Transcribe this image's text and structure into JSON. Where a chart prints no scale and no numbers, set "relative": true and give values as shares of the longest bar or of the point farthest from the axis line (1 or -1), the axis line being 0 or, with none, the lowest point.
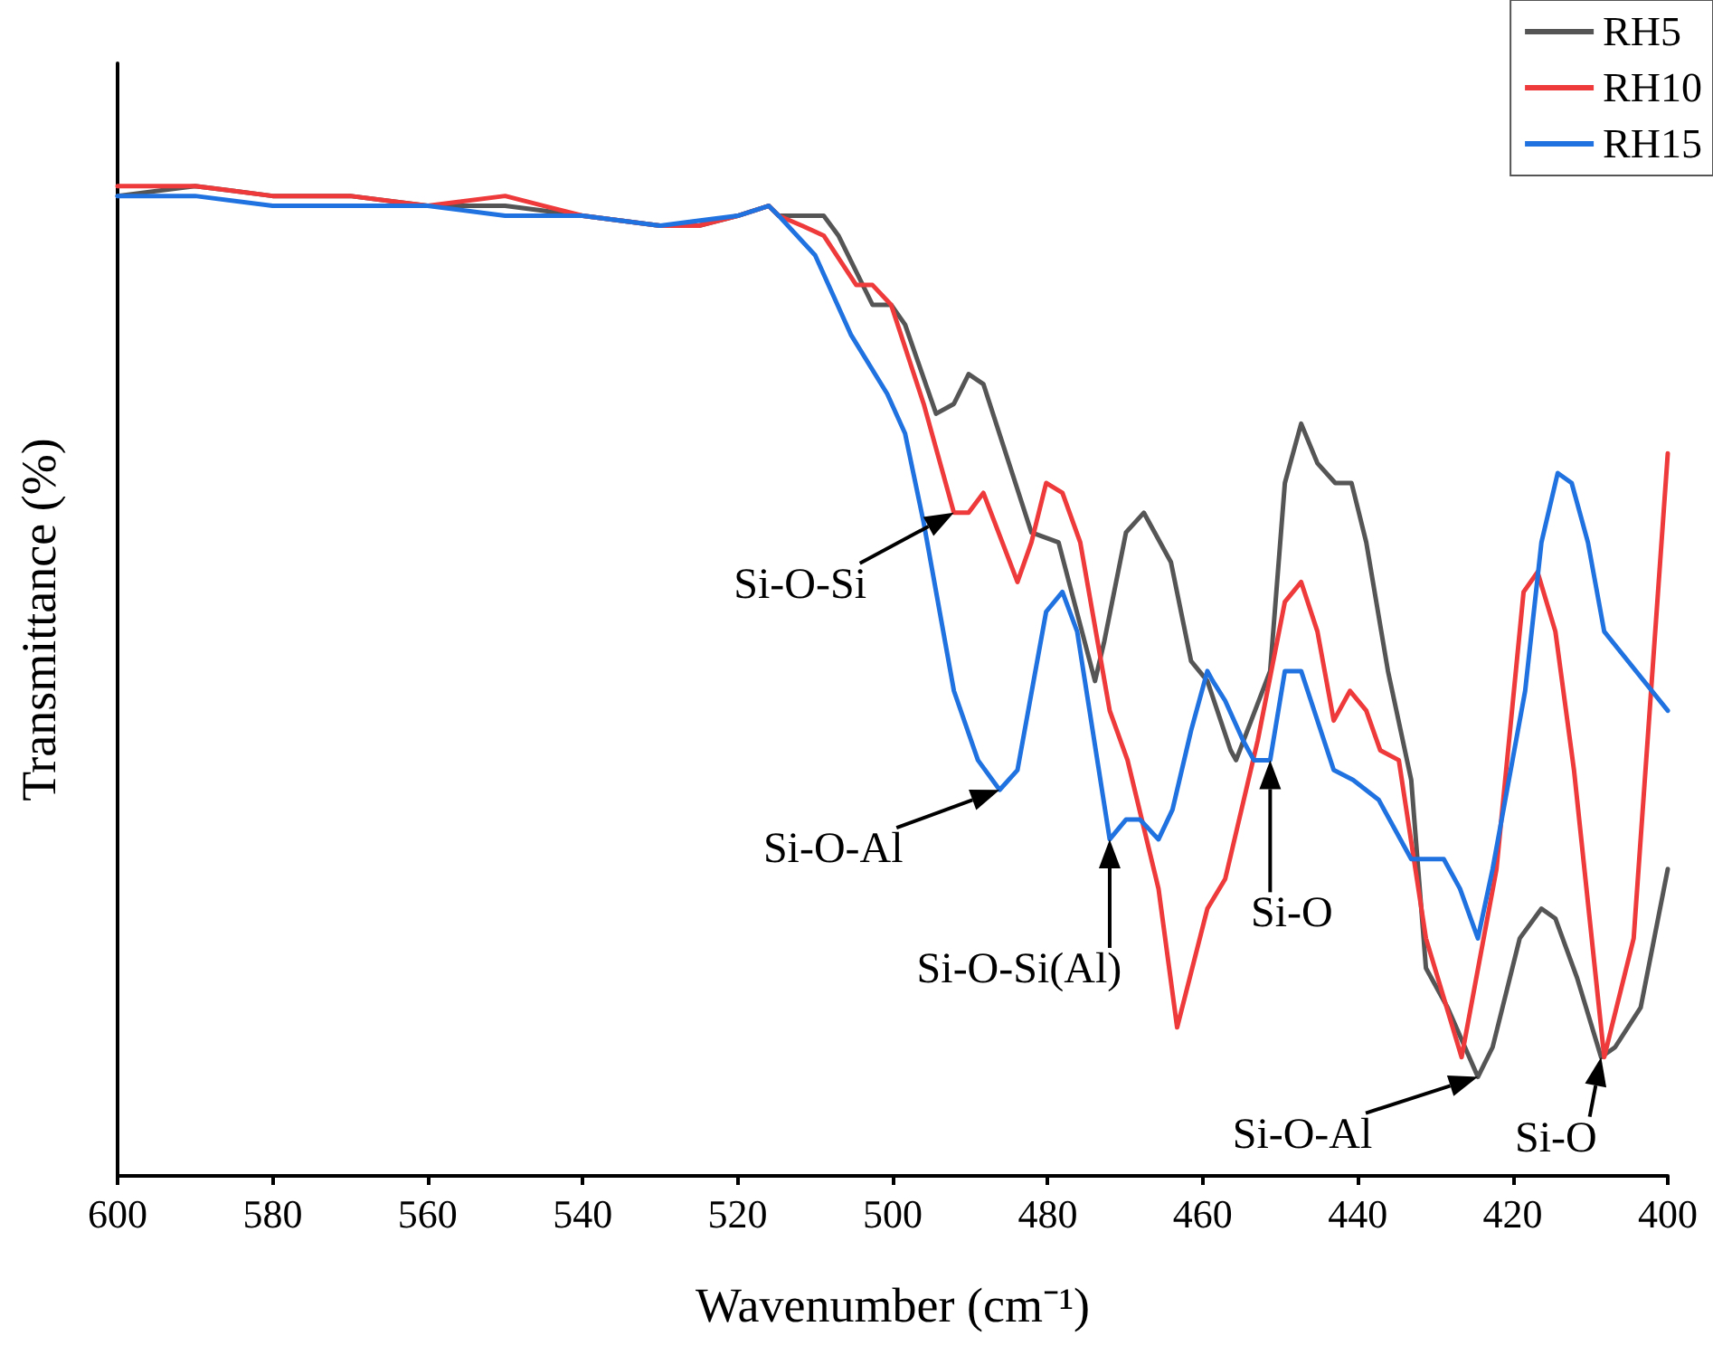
{
  "chart_data": {
    "type": "line",
    "relative": true,
    "xlabel": "Wavenumber (cm⁻¹)",
    "ylabel": "Transmittance (%)",
    "xlim": [
      600,
      400
    ],
    "xticks": [
      600,
      580,
      560,
      540,
      520,
      500,
      480,
      460,
      440,
      420,
      400
    ],
    "grid": false,
    "legend": "top right",
    "tick_labels": "x",
    "series": [
      {
        "name": "RH5",
        "color": "#555555",
        "x": [
          600,
          590,
          580,
          570,
          560,
          550,
          540,
          530,
          525,
          520,
          516,
          514.7,
          508.9,
          507.0,
          502.6,
          500.2,
          498.4,
          494.4,
          492.1,
          490.2,
          488.3,
          482.1,
          478.6,
          473.9,
          472.7,
          469.9,
          467.6,
          464.1,
          461.5,
          459.4,
          456.4,
          455.7,
          451.3,
          449.4,
          447.3,
          445.2,
          442.9,
          440.8,
          438.9,
          436.1,
          433.1,
          431.2,
          428.4,
          424.5,
          422.6,
          419.1,
          416.3,
          414.5,
          411.7,
          408.6,
          406.8,
          403.5,
          400
        ],
        "values": [
          0.99,
          1.0,
          0.99,
          0.99,
          0.98,
          0.98,
          0.97,
          0.96,
          0.96,
          0.97,
          0.98,
          0.97,
          0.97,
          0.95,
          0.88,
          0.88,
          0.86,
          0.77,
          0.78,
          0.81,
          0.8,
          0.65,
          0.64,
          0.5,
          0.54,
          0.65,
          0.67,
          0.62,
          0.52,
          0.5,
          0.43,
          0.42,
          0.51,
          0.7,
          0.76,
          0.72,
          0.7,
          0.7,
          0.64,
          0.51,
          0.4,
          0.21,
          0.17,
          0.1,
          0.13,
          0.24,
          0.27,
          0.26,
          0.2,
          0.12,
          0.13,
          0.17,
          0.31
        ]
      },
      {
        "name": "RH10",
        "color": "#ee3a3a",
        "x": [
          600,
          590,
          580,
          570,
          560,
          550,
          545,
          540,
          530,
          525,
          520,
          516,
          514.7,
          511.7,
          508.9,
          504.7,
          502.6,
          500.2,
          496.0,
          492.1,
          490.2,
          488.3,
          483.9,
          482.1,
          480.2,
          478.1,
          475.8,
          472.0,
          469.7,
          465.7,
          463.3,
          459.4,
          457.1,
          452.9,
          449.4,
          447.3,
          445.2,
          443.1,
          441.0,
          438.9,
          437.1,
          434.7,
          431.2,
          426.6,
          422.1,
          418.6,
          416.8,
          414.5,
          412.1,
          408.2,
          404.4,
          400
        ],
        "values": [
          1.0,
          1.0,
          0.99,
          0.99,
          0.98,
          0.99,
          0.98,
          0.97,
          0.96,
          0.96,
          0.97,
          0.98,
          0.97,
          0.96,
          0.95,
          0.9,
          0.9,
          0.88,
          0.78,
          0.67,
          0.67,
          0.69,
          0.6,
          0.64,
          0.7,
          0.69,
          0.64,
          0.47,
          0.42,
          0.29,
          0.15,
          0.27,
          0.3,
          0.44,
          0.58,
          0.6,
          0.55,
          0.46,
          0.49,
          0.47,
          0.43,
          0.42,
          0.24,
          0.12,
          0.31,
          0.59,
          0.61,
          0.55,
          0.41,
          0.12,
          0.24,
          0.73
        ]
      },
      {
        "name": "RH15",
        "color": "#1f72e0",
        "x": [
          600,
          590,
          580,
          570,
          560,
          550,
          540,
          530,
          520,
          516,
          514.7,
          510.0,
          505.4,
          500.7,
          498.4,
          496.0,
          492.1,
          489.0,
          486.2,
          483.9,
          480.2,
          478.1,
          476.2,
          472.0,
          469.9,
          468.1,
          465.7,
          463.9,
          461.5,
          459.4,
          458.7,
          457.1,
          454.8,
          453.4,
          451.3,
          449.4,
          447.3,
          443.1,
          440.6,
          437.3,
          433.1,
          428.9,
          426.8,
          424.5,
          422.6,
          418.4,
          416.3,
          414.2,
          412.4,
          410.3,
          408.2,
          400
        ],
        "values": [
          0.99,
          0.99,
          0.98,
          0.98,
          0.98,
          0.97,
          0.97,
          0.96,
          0.97,
          0.98,
          0.97,
          0.93,
          0.85,
          0.79,
          0.75,
          0.66,
          0.49,
          0.42,
          0.39,
          0.41,
          0.57,
          0.59,
          0.55,
          0.34,
          0.36,
          0.36,
          0.34,
          0.37,
          0.45,
          0.51,
          0.5,
          0.48,
          0.44,
          0.42,
          0.42,
          0.51,
          0.51,
          0.41,
          0.4,
          0.38,
          0.32,
          0.32,
          0.29,
          0.24,
          0.31,
          0.49,
          0.64,
          0.71,
          0.7,
          0.64,
          0.55,
          0.47
        ]
      }
    ],
    "annotations": [
      {
        "text": "Si-O-Si",
        "x": 492.1,
        "y": 0.67
      },
      {
        "text": "Si-O-Al",
        "x": 486.2,
        "y": 0.39
      },
      {
        "text": "Si-O-Si(Al)",
        "x": 472.0,
        "y": 0.34
      },
      {
        "text": "Si-O",
        "x": 451.3,
        "y": 0.42
      },
      {
        "text": "Si-O-Al",
        "x": 424.5,
        "y": 0.1
      },
      {
        "text": "Si-O",
        "x": 408.6,
        "y": 0.12
      }
    ]
  }
}
